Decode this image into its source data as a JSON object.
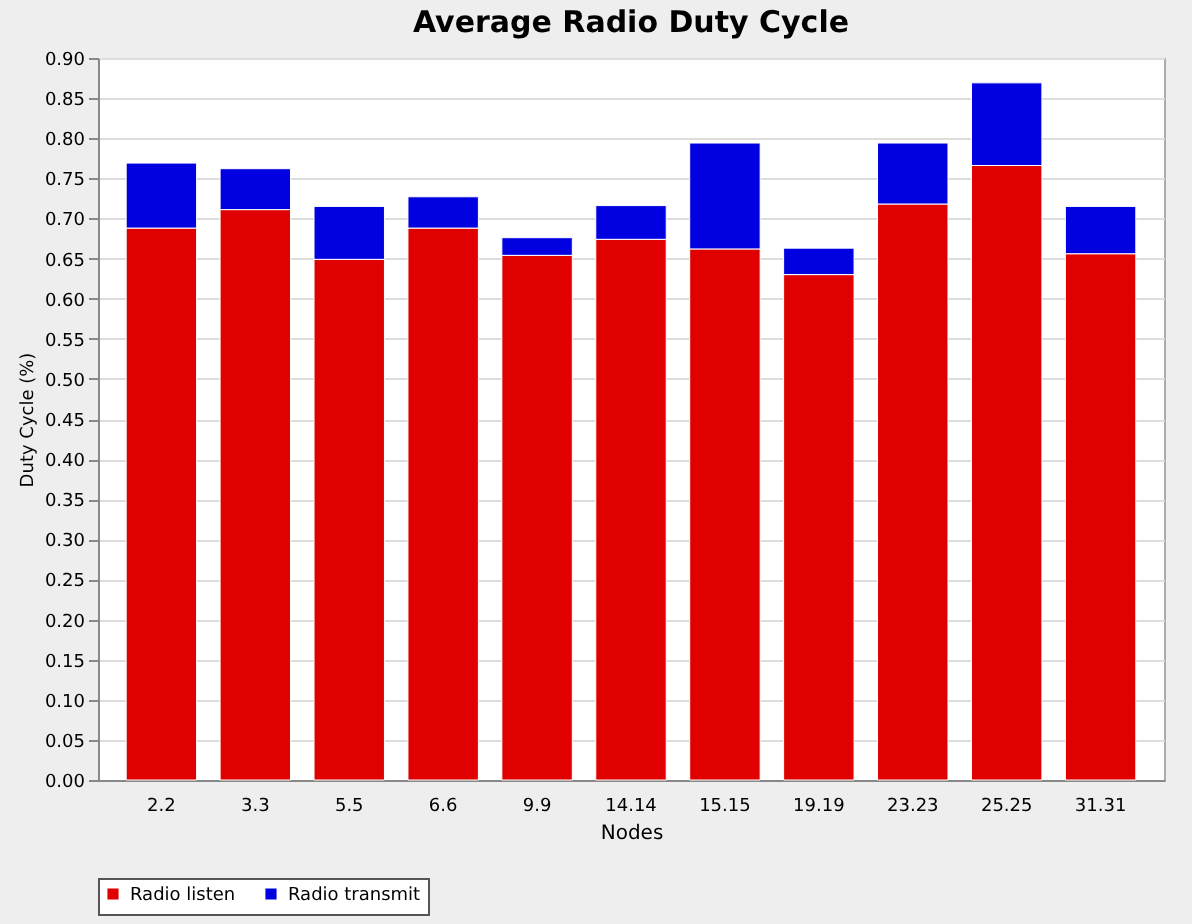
{
  "chart_data": {
    "type": "bar",
    "title": "Average Radio Duty Cycle",
    "xlabel": "Nodes",
    "ylabel": "Duty Cycle (%)",
    "categories": [
      "2.2",
      "3.3",
      "5.5",
      "6.6",
      "9.9",
      "14.14",
      "15.15",
      "19.19",
      "23.23",
      "25.25",
      "31.31"
    ],
    "stacked": true,
    "series": [
      {
        "name": "Radio listen",
        "color": "#e00000",
        "values": [
          0.688,
          0.711,
          0.649,
          0.688,
          0.654,
          0.674,
          0.662,
          0.63,
          0.718,
          0.766,
          0.656
        ]
      },
      {
        "name": "Radio transmit",
        "color": "#0000e0",
        "values": [
          0.081,
          0.051,
          0.066,
          0.039,
          0.022,
          0.042,
          0.132,
          0.033,
          0.076,
          0.103,
          0.059
        ]
      }
    ],
    "ylim": [
      0,
      0.9
    ],
    "yticks": [
      {
        "value": 0,
        "label": "0.00"
      },
      {
        "value": 0.05,
        "label": "0.05"
      },
      {
        "value": 0.1,
        "label": "0.10"
      },
      {
        "value": 0.15,
        "label": "0.15"
      },
      {
        "value": 0.2,
        "label": "0.20"
      },
      {
        "value": 0.25,
        "label": "0.25"
      },
      {
        "value": 0.3,
        "label": "0.30"
      },
      {
        "value": 0.35,
        "label": "0.35"
      },
      {
        "value": 0.4,
        "label": "0.40"
      },
      {
        "value": 0.45,
        "label": "0.45"
      },
      {
        "value": 0.5,
        "label": "0.50"
      },
      {
        "value": 0.55,
        "label": "0.55"
      },
      {
        "value": 0.6,
        "label": "0.60"
      },
      {
        "value": 0.65,
        "label": "0.65"
      },
      {
        "value": 0.7,
        "label": "0.70"
      },
      {
        "value": 0.75,
        "label": "0.75"
      },
      {
        "value": 0.8,
        "label": "0.80"
      },
      {
        "value": 0.85,
        "label": "0.85"
      },
      {
        "value": 0.9,
        "label": "0.90"
      }
    ],
    "grid": "y",
    "legend": "bottom"
  }
}
